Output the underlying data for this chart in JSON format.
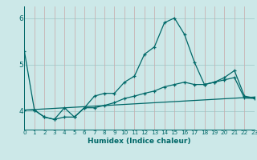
{
  "xlabel": "Humidex (Indice chaleur)",
  "bg_color": "#cce8e8",
  "grid_color_h": "#aad0d0",
  "grid_color_v": "#c8a8a8",
  "line_color": "#006868",
  "xmin": 0,
  "xmax": 23,
  "ymin": 3.6,
  "ymax": 6.25,
  "yticks": [
    4,
    5,
    6
  ],
  "xticks": [
    0,
    1,
    2,
    3,
    4,
    5,
    6,
    7,
    8,
    9,
    10,
    11,
    12,
    13,
    14,
    15,
    16,
    17,
    18,
    19,
    20,
    21,
    22,
    23
  ],
  "line1_x": [
    0,
    1,
    2,
    3,
    4,
    5,
    6,
    7,
    8,
    9,
    10,
    11,
    12,
    13,
    14,
    15,
    16,
    17,
    18,
    19,
    20,
    21,
    22,
    23
  ],
  "line1_y": [
    5.28,
    4.02,
    3.87,
    3.82,
    4.07,
    3.87,
    4.07,
    4.32,
    4.38,
    4.38,
    4.62,
    4.75,
    5.22,
    5.38,
    5.9,
    6.0,
    5.65,
    5.05,
    4.57,
    4.62,
    4.72,
    4.87,
    4.32,
    4.28
  ],
  "line2_x": [
    0,
    1,
    2,
    3,
    4,
    5,
    6,
    7,
    8,
    9,
    10,
    11,
    12,
    13,
    14,
    15,
    16,
    17,
    18,
    19,
    20,
    21,
    22,
    23
  ],
  "line2_y": [
    4.02,
    4.02,
    3.87,
    3.82,
    3.87,
    3.87,
    4.07,
    4.07,
    4.12,
    4.18,
    4.27,
    4.32,
    4.38,
    4.43,
    4.52,
    4.57,
    4.62,
    4.57,
    4.57,
    4.62,
    4.67,
    4.72,
    4.28,
    4.27
  ],
  "line3_x": [
    0,
    23
  ],
  "line3_y": [
    4.02,
    4.3
  ]
}
